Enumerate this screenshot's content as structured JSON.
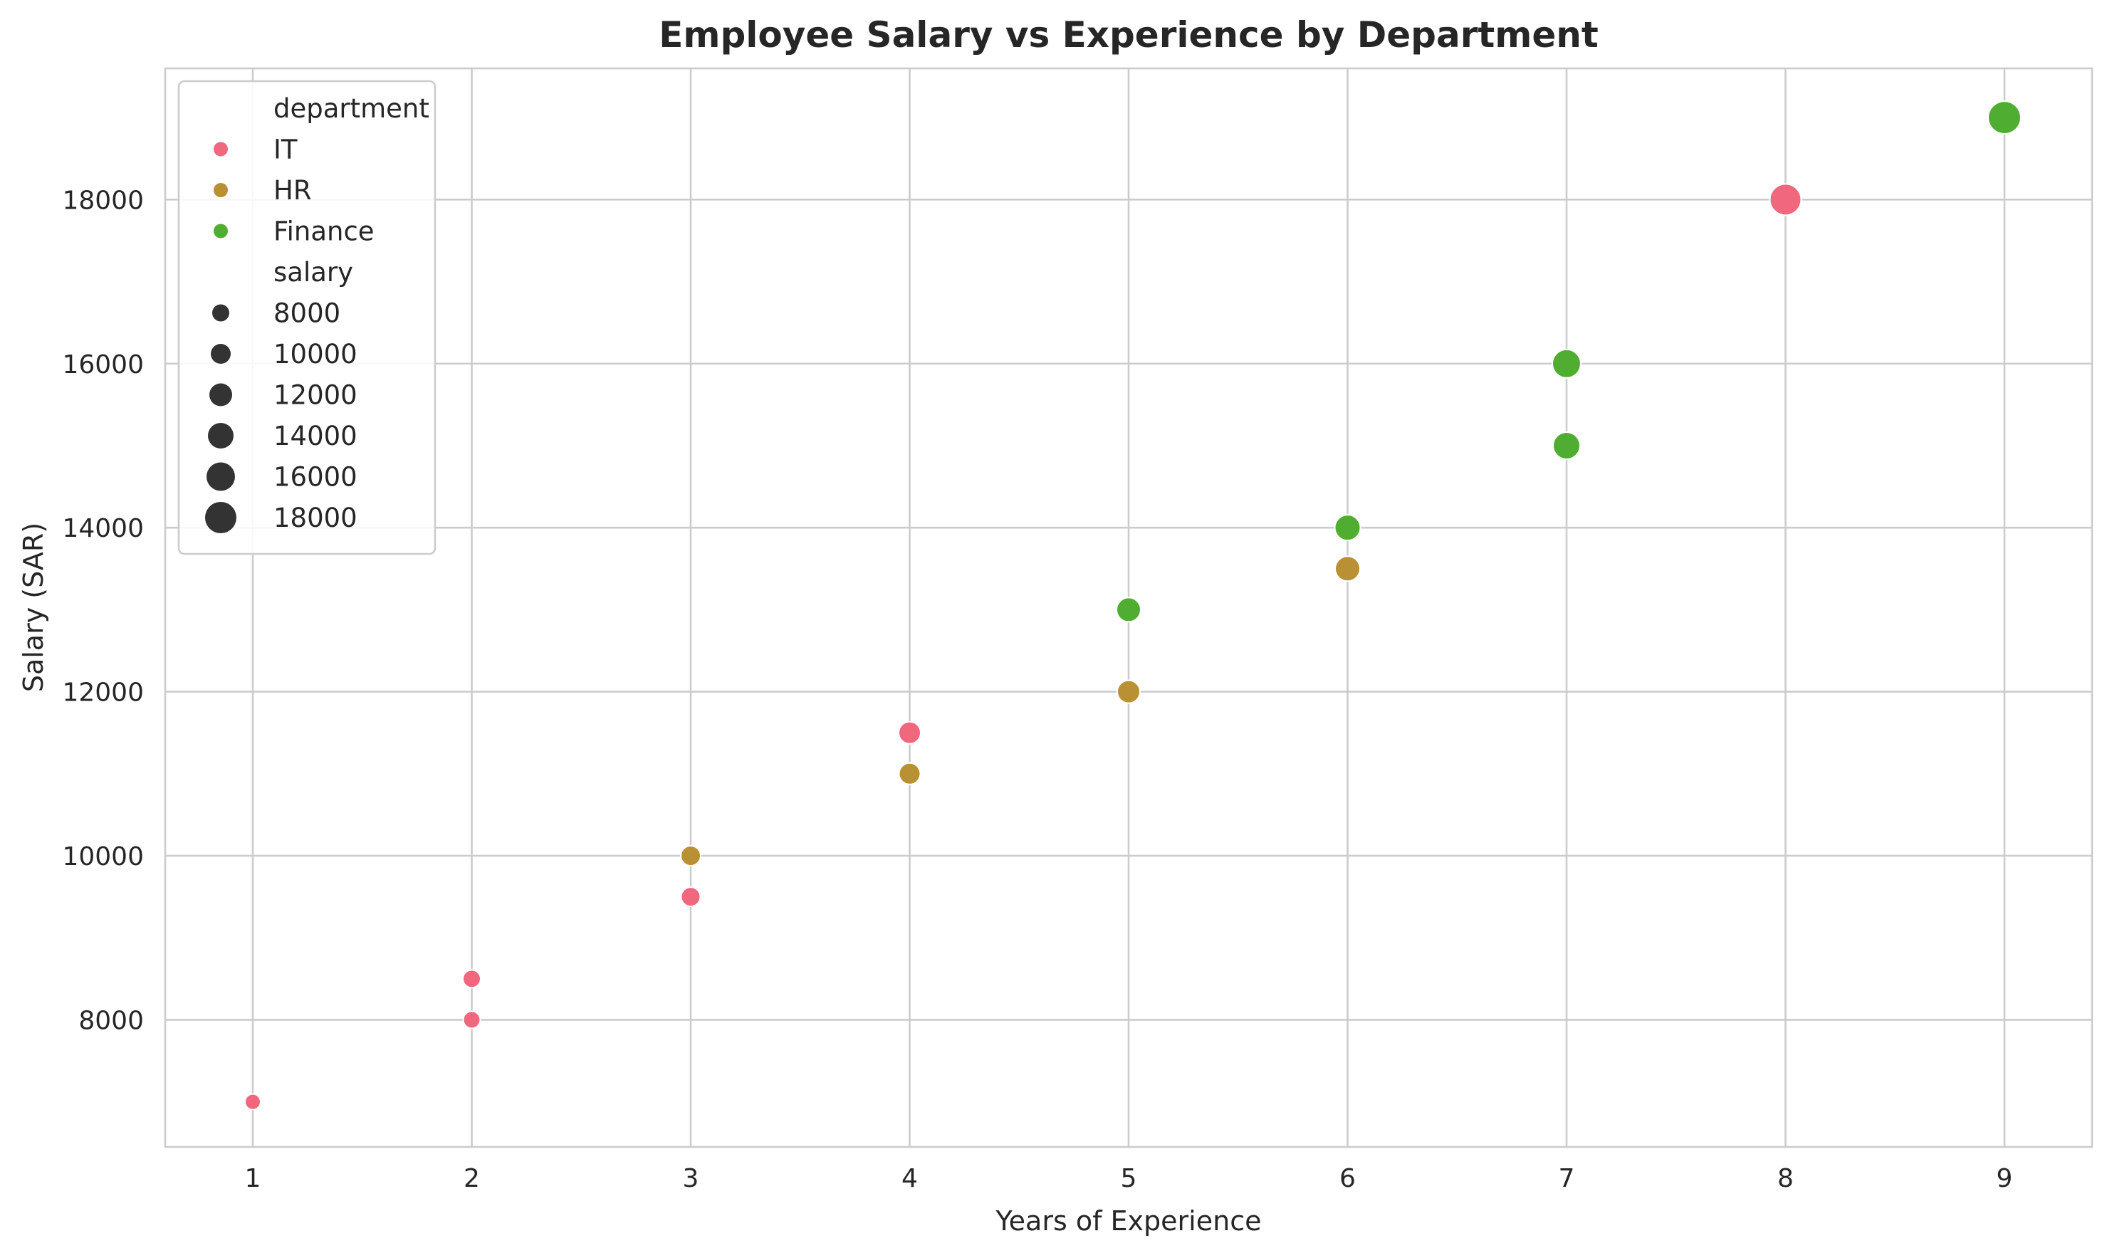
{
  "chart_data": {
    "type": "scatter",
    "title": "Employee Salary vs Experience by Department",
    "xlabel": "Years of Experience",
    "ylabel": "Salary (SAR)",
    "xlim": [
      0.6,
      9.4
    ],
    "ylim": [
      6450,
      19600
    ],
    "xticks": [
      1,
      2,
      3,
      4,
      5,
      6,
      7,
      8,
      9
    ],
    "yticks": [
      8000,
      10000,
      12000,
      14000,
      16000,
      18000
    ],
    "grid": true,
    "legend_placement": "top-left",
    "hue_title": "department",
    "size_title": "salary",
    "size_legend_values": [
      8000,
      10000,
      12000,
      14000,
      16000,
      18000
    ],
    "series": [
      {
        "name": "IT",
        "color": "#f0677e",
        "points": [
          {
            "x": 1,
            "y": 7000
          },
          {
            "x": 2,
            "y": 8000
          },
          {
            "x": 2,
            "y": 8500
          },
          {
            "x": 3,
            "y": 9500
          },
          {
            "x": 4,
            "y": 11500
          },
          {
            "x": 8,
            "y": 18000
          }
        ]
      },
      {
        "name": "HR",
        "color": "#b99033",
        "points": [
          {
            "x": 3,
            "y": 10000
          },
          {
            "x": 4,
            "y": 11000
          },
          {
            "x": 5,
            "y": 12000
          },
          {
            "x": 6,
            "y": 13500
          }
        ]
      },
      {
        "name": "Finance",
        "color": "#4fae32",
        "points": [
          {
            "x": 5,
            "y": 13000
          },
          {
            "x": 6,
            "y": 14000
          },
          {
            "x": 7,
            "y": 15000
          },
          {
            "x": 7,
            "y": 16000
          },
          {
            "x": 9,
            "y": 19000
          }
        ]
      }
    ],
    "size_legend_color": "#333333"
  }
}
